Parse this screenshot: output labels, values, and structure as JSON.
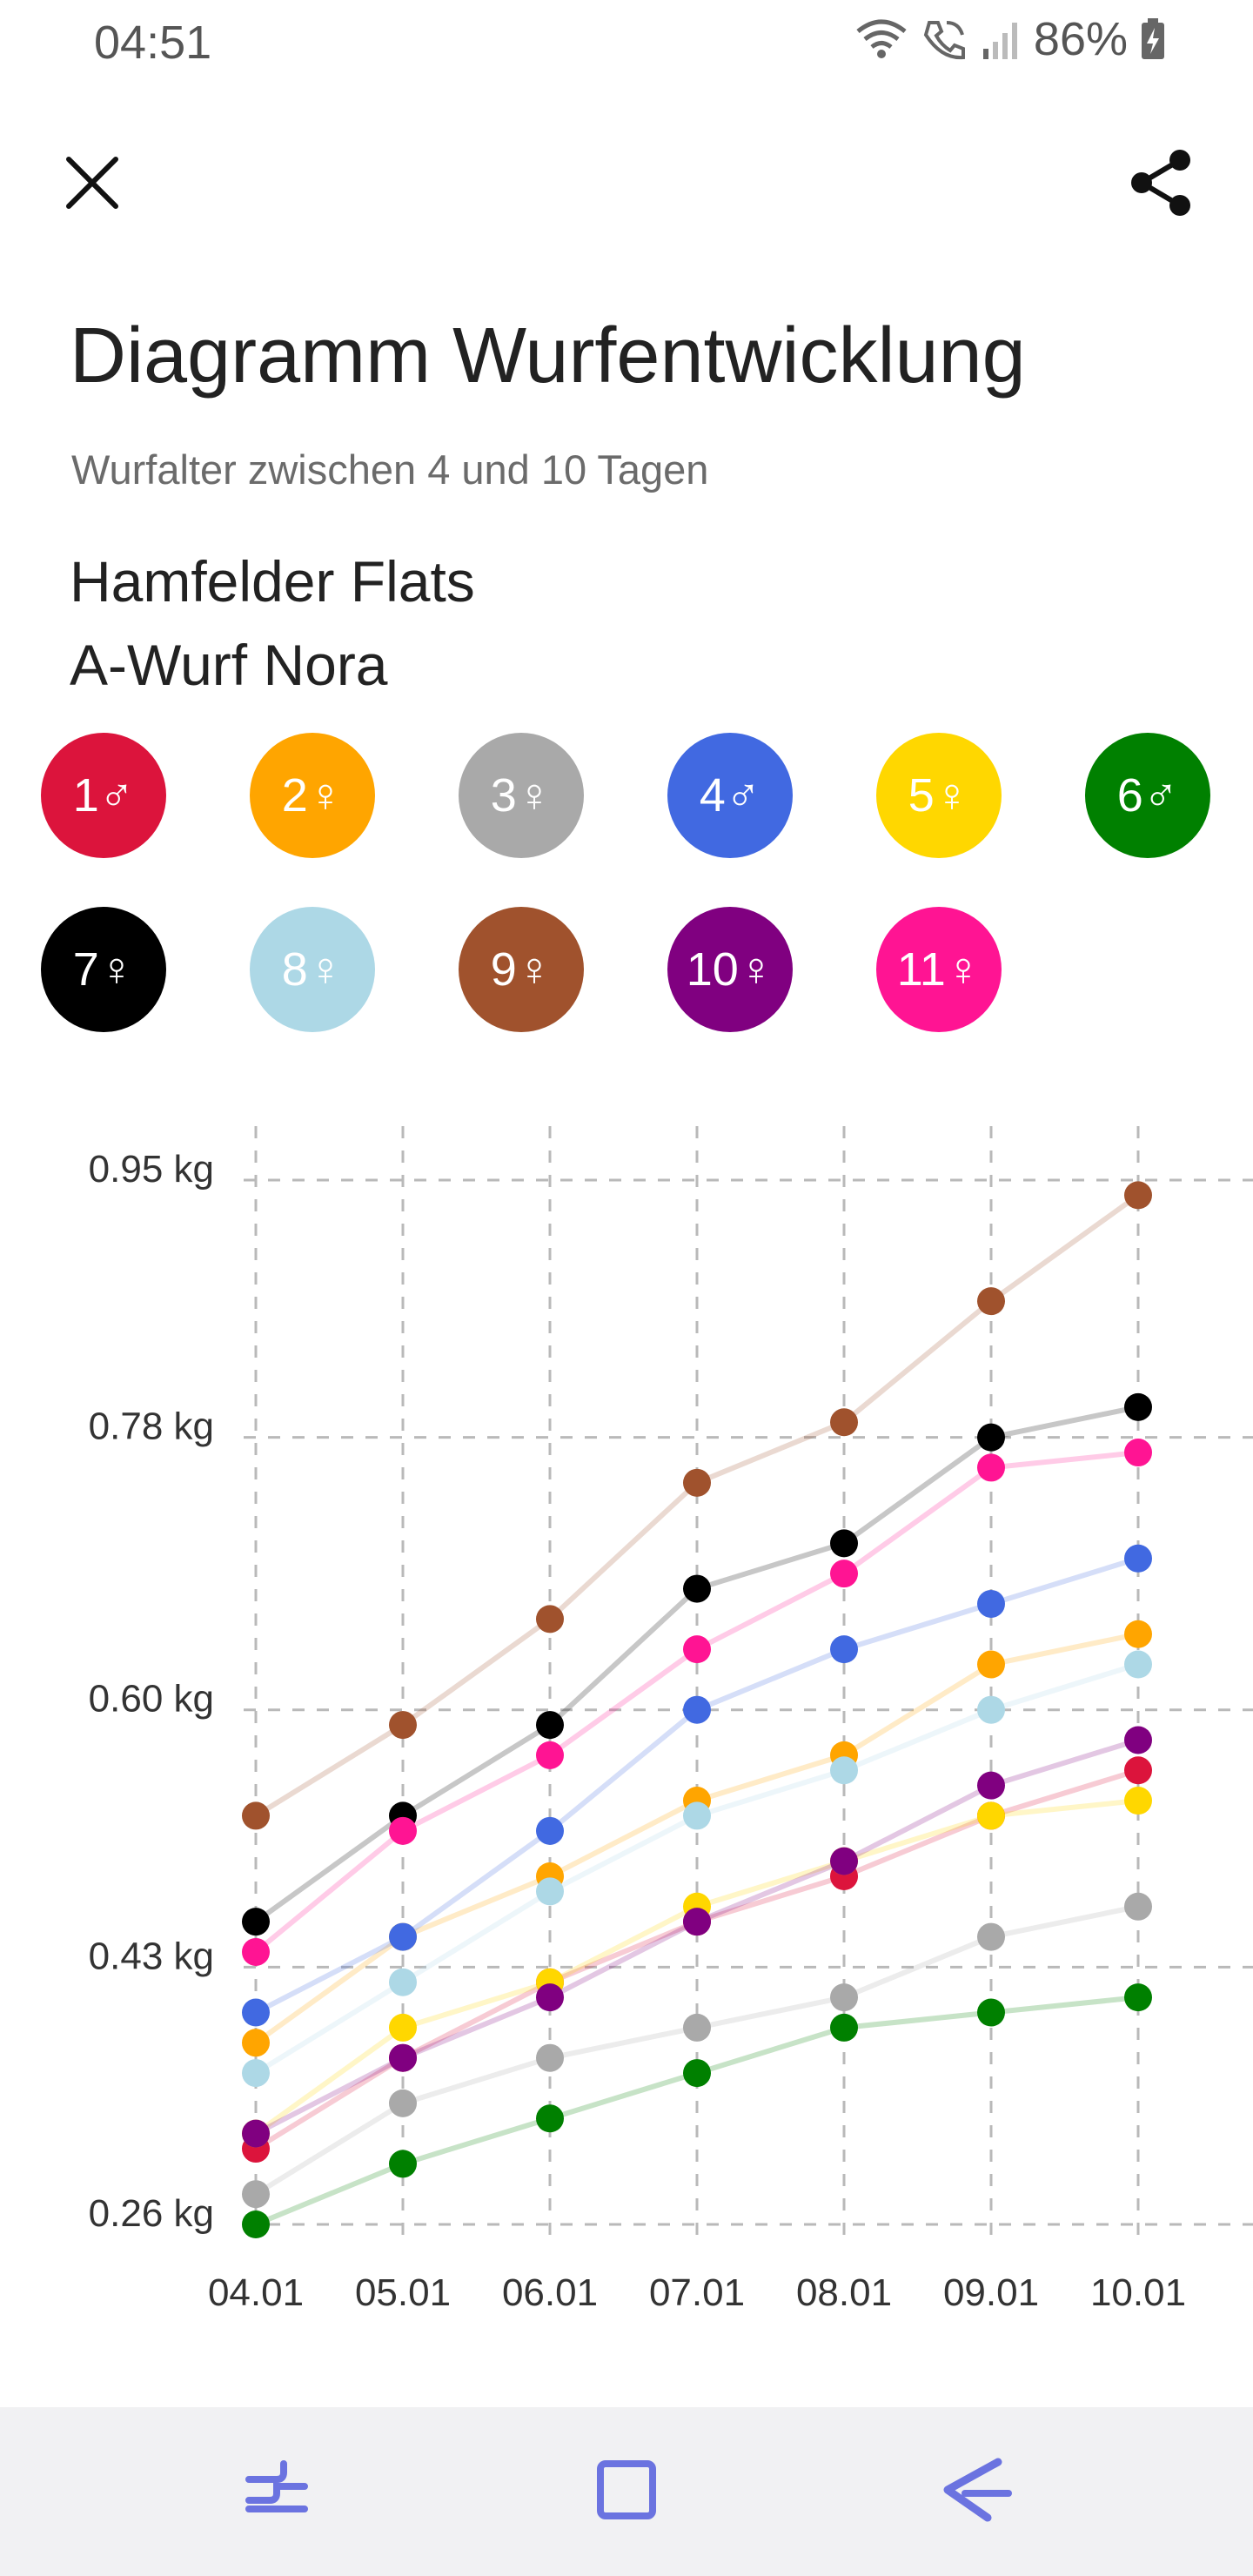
{
  "status_bar": {
    "time": "04:51",
    "battery": "86%",
    "icons": [
      "wifi-icon",
      "wifi-call-icon",
      "signal-icon",
      "battery-charging-icon"
    ]
  },
  "toolbar": {
    "close_icon": "close-icon",
    "share_icon": "share-icon"
  },
  "header": {
    "title": "Diagramm Wurfentwicklung",
    "subtitle": "Wurfalter zwischen 4 und 10 Tagen",
    "kennel": "Hamfelder Flats",
    "litter": "A-Wurf Nora"
  },
  "puppies": [
    {
      "label": "1♂",
      "color": "#DC143C"
    },
    {
      "label": "2♀",
      "color": "#FFA500"
    },
    {
      "label": "3♀",
      "color": "#A9A9A9"
    },
    {
      "label": "4♂",
      "color": "#4169E1"
    },
    {
      "label": "5♀",
      "color": "#FFD700"
    },
    {
      "label": "6♂",
      "color": "#008000"
    },
    {
      "label": "7♀",
      "color": "#000000"
    },
    {
      "label": "8♀",
      "color": "#ADD8E6"
    },
    {
      "label": "9♀",
      "color": "#A0522D"
    },
    {
      "label": "10♀",
      "color": "#800080"
    },
    {
      "label": "11♀",
      "color": "#FF1493"
    }
  ],
  "chart_data": {
    "type": "line",
    "categories": [
      "04.01",
      "05.01",
      "06.01",
      "07.01",
      "08.01",
      "09.01",
      "10.01"
    ],
    "y_tick_labels": [
      "0.95 kg",
      "0.78 kg",
      "0.60 kg",
      "0.43 kg",
      "0.26 kg"
    ],
    "y_ticks": [
      0.95,
      0.78,
      0.6,
      0.43,
      0.26
    ],
    "ylim": [
      0.26,
      0.95
    ],
    "grid": true,
    "series": [
      {
        "name": "1♂",
        "color": "#DC143C",
        "values": [
          0.31,
          0.37,
          0.42,
          0.46,
          0.49,
          0.53,
          0.56
        ]
      },
      {
        "name": "2♀",
        "color": "#FFA500",
        "values": [
          0.38,
          0.45,
          0.49,
          0.54,
          0.57,
          0.63,
          0.65
        ]
      },
      {
        "name": "3♀",
        "color": "#A9A9A9",
        "values": [
          0.28,
          0.34,
          0.37,
          0.39,
          0.41,
          0.45,
          0.47
        ]
      },
      {
        "name": "4♂",
        "color": "#4169E1",
        "values": [
          0.4,
          0.45,
          0.52,
          0.6,
          0.64,
          0.67,
          0.7
        ]
      },
      {
        "name": "5♀",
        "color": "#FFD700",
        "values": [
          0.32,
          0.39,
          0.42,
          0.47,
          0.5,
          0.53,
          0.54
        ]
      },
      {
        "name": "6♂",
        "color": "#008000",
        "values": [
          0.26,
          0.3,
          0.33,
          0.36,
          0.39,
          0.4,
          0.41
        ]
      },
      {
        "name": "7♀",
        "color": "#000000",
        "values": [
          0.46,
          0.53,
          0.59,
          0.68,
          0.71,
          0.78,
          0.8
        ]
      },
      {
        "name": "8♀",
        "color": "#ADD8E6",
        "values": [
          0.36,
          0.42,
          0.48,
          0.53,
          0.56,
          0.6,
          0.63
        ]
      },
      {
        "name": "9♀",
        "color": "#A0522D",
        "values": [
          0.53,
          0.59,
          0.66,
          0.75,
          0.79,
          0.87,
          0.94
        ]
      },
      {
        "name": "10♀",
        "color": "#800080",
        "values": [
          0.32,
          0.37,
          0.41,
          0.46,
          0.5,
          0.55,
          0.58
        ]
      },
      {
        "name": "11♀",
        "color": "#FF1493",
        "values": [
          0.44,
          0.52,
          0.57,
          0.64,
          0.69,
          0.76,
          0.77
        ]
      }
    ]
  },
  "nav_bar": {
    "recents_icon": "recents-icon",
    "home_icon": "home-icon",
    "back_icon": "back-icon"
  }
}
